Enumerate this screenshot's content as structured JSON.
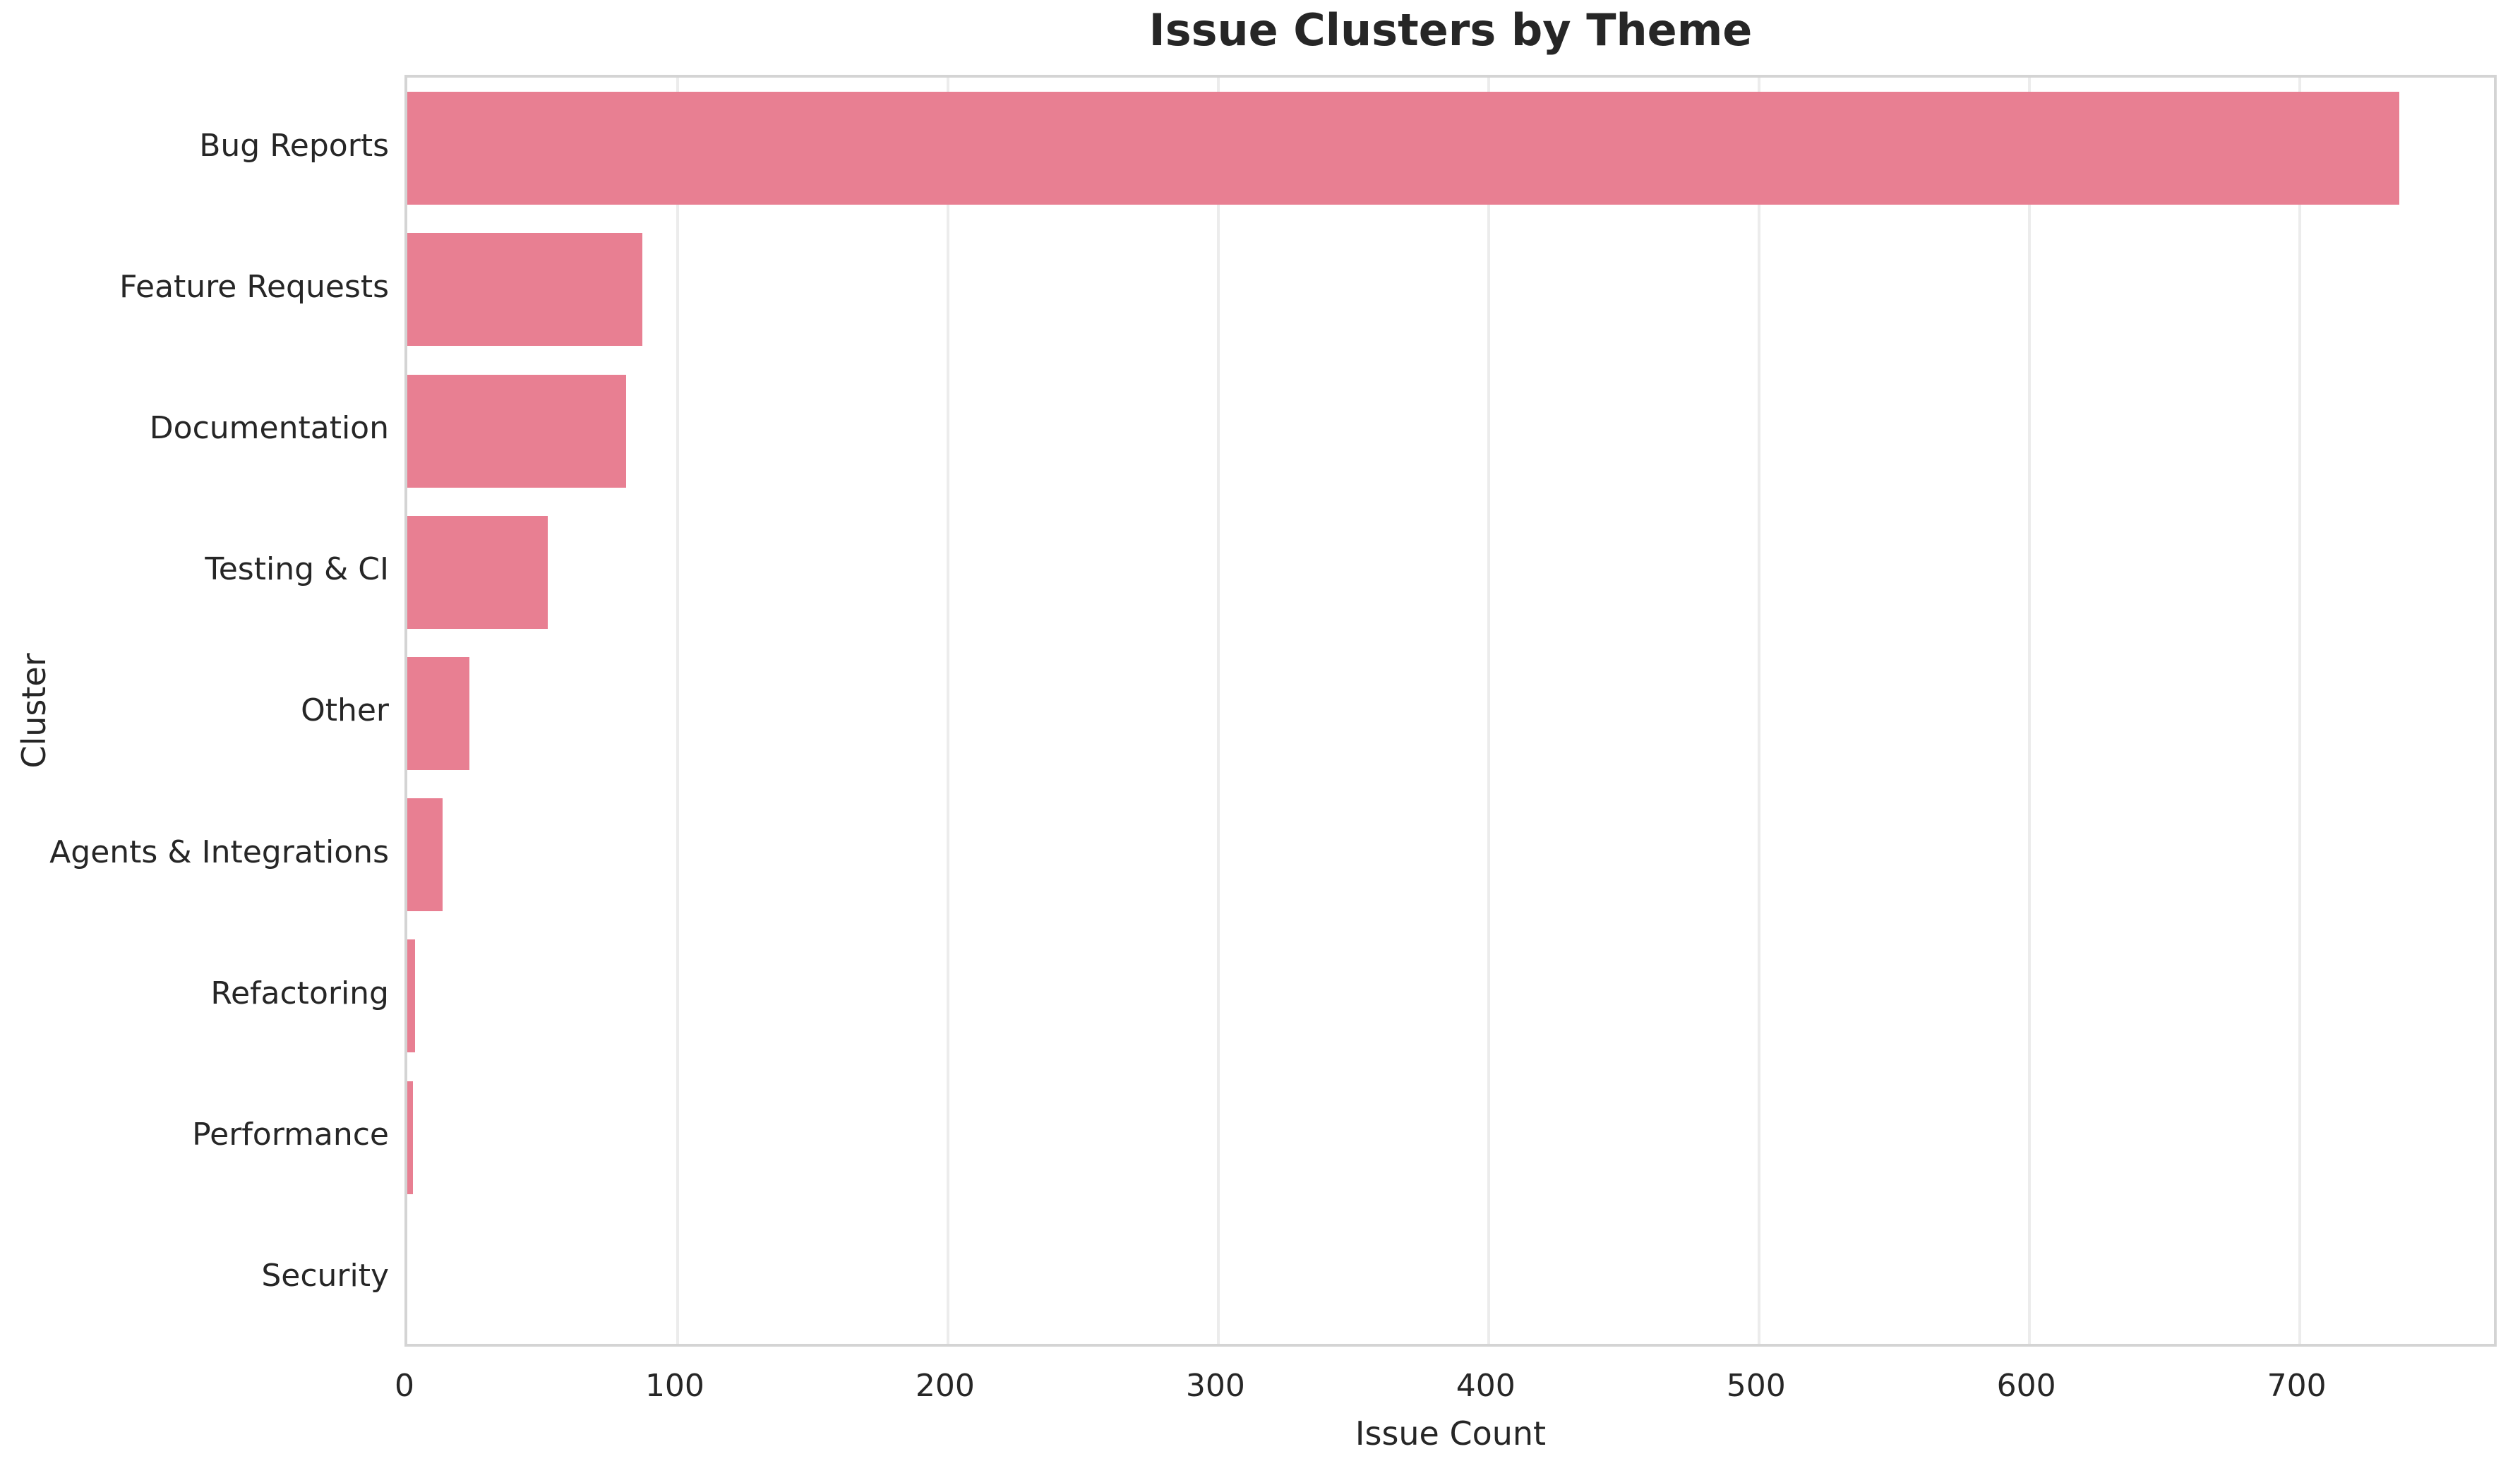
{
  "title": "Issue Clusters by Theme",
  "chart_data": {
    "type": "bar",
    "orientation": "horizontal",
    "title": "Issue Clusters by Theme",
    "xlabel": "Issue Count",
    "ylabel": "Cluster",
    "categories": [
      "Bug Reports",
      "Feature Requests",
      "Documentation",
      "Testing & CI",
      "Other",
      "Agents & Integrations",
      "Refactoring",
      "Performance",
      "Security"
    ],
    "values": [
      737,
      87,
      81,
      52,
      23,
      13,
      3,
      2,
      0
    ],
    "x_ticks": [
      0,
      100,
      200,
      300,
      400,
      500,
      600,
      700
    ],
    "xlim": [
      0,
      774
    ],
    "grid": true,
    "legend": null,
    "colors": {
      "bar": "#e87f92",
      "grid": "#ececec",
      "spine": "#d4d4d4",
      "text": "#262626"
    }
  }
}
